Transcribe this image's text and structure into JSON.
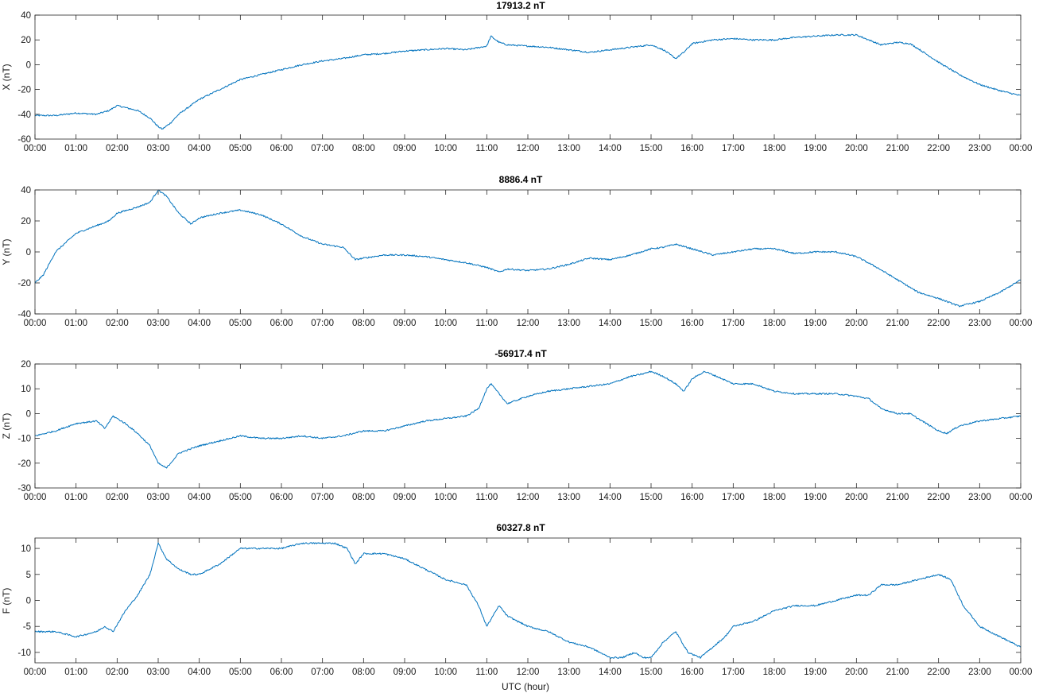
{
  "figure": {
    "xlabel": "UTC (hour)",
    "line_color": "#0072BD"
  },
  "chart_data": [
    {
      "type": "line",
      "title": "17913.2 nT",
      "ylabel": "X (nT)",
      "xlim": [
        0,
        24
      ],
      "ylim": [
        -60,
        40
      ],
      "yticks": [
        -60,
        -40,
        -20,
        0,
        20,
        40
      ],
      "xticks": [
        0,
        1,
        2,
        3,
        4,
        5,
        6,
        7,
        8,
        9,
        10,
        11,
        12,
        13,
        14,
        15,
        16,
        17,
        18,
        19,
        20,
        21,
        22,
        23,
        24
      ],
      "xtick_labels": [
        "00:00",
        "01:00",
        "02:00",
        "03:00",
        "04:00",
        "05:00",
        "06:00",
        "07:00",
        "08:00",
        "09:00",
        "10:00",
        "11:00",
        "12:00",
        "13:00",
        "14:00",
        "15:00",
        "16:00",
        "17:00",
        "18:00",
        "19:00",
        "20:00",
        "21:00",
        "22:00",
        "23:00",
        "00:00"
      ],
      "x": [
        0,
        0.5,
        1,
        1.5,
        1.8,
        2,
        2.5,
        2.8,
        3,
        3.1,
        3.3,
        3.5,
        4,
        4.5,
        5,
        5.5,
        6,
        6.5,
        7,
        7.5,
        8,
        8.5,
        9,
        9.5,
        10,
        10.5,
        11,
        11.1,
        11.3,
        11.5,
        12,
        12.5,
        13,
        13.5,
        14,
        14.5,
        15,
        15.3,
        15.6,
        15.8,
        16,
        16.5,
        17,
        17.5,
        18,
        18.5,
        19,
        19.5,
        20,
        20.3,
        20.6,
        21,
        21.3,
        21.5,
        22,
        22.5,
        23,
        23.5,
        24
      ],
      "y": [
        -41,
        -41,
        -39,
        -40,
        -37,
        -33,
        -37,
        -43,
        -50,
        -52,
        -47,
        -40,
        -28,
        -20,
        -12,
        -8,
        -4,
        0,
        3,
        5,
        8,
        9,
        11,
        12,
        13,
        12,
        15,
        23,
        18,
        16,
        15,
        14,
        12,
        10,
        12,
        14,
        16,
        12,
        5,
        10,
        17,
        20,
        21,
        20,
        20,
        22,
        23,
        24,
        24,
        20,
        16,
        18,
        17,
        13,
        2,
        -8,
        -16,
        -21,
        -25
      ]
    },
    {
      "type": "line",
      "title": "8886.4 nT",
      "ylabel": "Y (nT)",
      "xlim": [
        0,
        24
      ],
      "ylim": [
        -40,
        40
      ],
      "yticks": [
        -40,
        -20,
        0,
        20,
        40
      ],
      "xticks": [
        0,
        1,
        2,
        3,
        4,
        5,
        6,
        7,
        8,
        9,
        10,
        11,
        12,
        13,
        14,
        15,
        16,
        17,
        18,
        19,
        20,
        21,
        22,
        23,
        24
      ],
      "xtick_labels": [
        "00:00",
        "01:00",
        "02:00",
        "03:00",
        "04:00",
        "05:00",
        "06:00",
        "07:00",
        "08:00",
        "09:00",
        "10:00",
        "11:00",
        "12:00",
        "13:00",
        "14:00",
        "15:00",
        "16:00",
        "17:00",
        "18:00",
        "19:00",
        "20:00",
        "21:00",
        "22:00",
        "23:00",
        "00:00"
      ],
      "x": [
        0,
        0.2,
        0.5,
        1,
        1.5,
        1.8,
        2,
        2.5,
        2.8,
        3,
        3.2,
        3.5,
        3.8,
        4,
        4.5,
        5,
        5.5,
        6,
        6.5,
        7,
        7.5,
        7.8,
        8,
        8.5,
        9,
        9.5,
        10,
        10.5,
        11,
        11.3,
        11.5,
        12,
        12.5,
        13,
        13.5,
        14,
        14.5,
        15,
        15.3,
        15.6,
        16,
        16.5,
        17,
        17.5,
        18,
        18.5,
        19,
        19.5,
        20,
        20.5,
        21,
        21.5,
        22,
        22.5,
        23,
        23.5,
        24
      ],
      "y": [
        -20,
        -15,
        0,
        12,
        17,
        20,
        25,
        29,
        32,
        40,
        36,
        25,
        18,
        22,
        25,
        27,
        24,
        18,
        10,
        5,
        3,
        -5,
        -4,
        -2,
        -2,
        -3,
        -5,
        -7,
        -10,
        -13,
        -11,
        -12,
        -11,
        -8,
        -4,
        -5,
        -2,
        2,
        3,
        5,
        2,
        -2,
        0,
        2,
        2,
        -1,
        0,
        0,
        -3,
        -10,
        -18,
        -26,
        -30,
        -35,
        -32,
        -26,
        -18
      ]
    },
    {
      "type": "line",
      "title": "-56917.4 nT",
      "ylabel": "Z (nT)",
      "xlim": [
        0,
        24
      ],
      "ylim": [
        -30,
        20
      ],
      "yticks": [
        -30,
        -20,
        -10,
        0,
        10,
        20
      ],
      "xticks": [
        0,
        1,
        2,
        3,
        4,
        5,
        6,
        7,
        8,
        9,
        10,
        11,
        12,
        13,
        14,
        15,
        16,
        17,
        18,
        19,
        20,
        21,
        22,
        23,
        24
      ],
      "xtick_labels": [
        "00:00",
        "01:00",
        "02:00",
        "03:00",
        "04:00",
        "05:00",
        "06:00",
        "07:00",
        "08:00",
        "09:00",
        "10:00",
        "11:00",
        "12:00",
        "13:00",
        "14:00",
        "15:00",
        "16:00",
        "17:00",
        "18:00",
        "19:00",
        "20:00",
        "21:00",
        "22:00",
        "23:00",
        "00:00"
      ],
      "x": [
        0,
        0.5,
        1,
        1.5,
        1.7,
        1.9,
        2.2,
        2.5,
        2.8,
        3,
        3.2,
        3.5,
        4,
        4.5,
        5,
        5.5,
        6,
        6.5,
        7,
        7.5,
        8,
        8.5,
        9,
        9.5,
        10,
        10.5,
        10.8,
        11,
        11.1,
        11.3,
        11.5,
        12,
        12.5,
        13,
        13.5,
        14,
        14.5,
        14.8,
        15,
        15.3,
        15.6,
        15.8,
        16,
        16.3,
        16.6,
        17,
        17.5,
        18,
        18.5,
        19,
        19.5,
        20,
        20.3,
        20.6,
        21,
        21.3,
        21.6,
        22,
        22.2,
        22.5,
        23,
        23.5,
        24
      ],
      "y": [
        -9,
        -7,
        -4,
        -3,
        -6,
        -1,
        -4,
        -8,
        -13,
        -20,
        -22,
        -16,
        -13,
        -11,
        -9,
        -10,
        -10,
        -9,
        -10,
        -9,
        -7,
        -7,
        -5,
        -3,
        -2,
        -1,
        2,
        10,
        12,
        8,
        4,
        7,
        9,
        10,
        11,
        12,
        15,
        16,
        17,
        15,
        12,
        9,
        14,
        17,
        15,
        12,
        12,
        9,
        8,
        8,
        8,
        7,
        6,
        2,
        0,
        0,
        -3,
        -7,
        -8,
        -5,
        -3,
        -2,
        -1
      ]
    },
    {
      "type": "line",
      "title": "60327.8 nT",
      "ylabel": "F (nT)",
      "xlabel": "UTC (hour)",
      "xlim": [
        0,
        24
      ],
      "ylim": [
        -12,
        12
      ],
      "yticks": [
        -10,
        -5,
        0,
        5,
        10
      ],
      "xticks": [
        0,
        1,
        2,
        3,
        4,
        5,
        6,
        7,
        8,
        9,
        10,
        11,
        12,
        13,
        14,
        15,
        16,
        17,
        18,
        19,
        20,
        21,
        22,
        23,
        24
      ],
      "xtick_labels": [
        "00:00",
        "01:00",
        "02:00",
        "03:00",
        "04:00",
        "05:00",
        "06:00",
        "07:00",
        "08:00",
        "09:00",
        "10:00",
        "11:00",
        "12:00",
        "13:00",
        "14:00",
        "15:00",
        "16:00",
        "17:00",
        "18:00",
        "19:00",
        "20:00",
        "21:00",
        "22:00",
        "23:00",
        "00:00"
      ],
      "x": [
        0,
        0.5,
        1,
        1.5,
        1.7,
        1.9,
        2.2,
        2.5,
        2.8,
        3,
        3.2,
        3.5,
        3.8,
        4,
        4.5,
        5,
        5.5,
        6,
        6.5,
        7,
        7.3,
        7.6,
        7.8,
        8,
        8.5,
        9,
        9.5,
        10,
        10.5,
        10.8,
        11,
        11.3,
        11.5,
        12,
        12.5,
        13,
        13.5,
        14,
        14.3,
        14.6,
        14.8,
        15,
        15.3,
        15.6,
        15.9,
        16.2,
        16.5,
        16.8,
        17,
        17.5,
        18,
        18.5,
        19,
        19.5,
        20,
        20.3,
        20.6,
        21,
        21.5,
        22,
        22.3,
        22.6,
        23,
        23.5,
        24
      ],
      "y": [
        -6,
        -6,
        -7,
        -6,
        -5,
        -6,
        -2,
        1,
        5,
        11,
        8,
        6,
        5,
        5,
        7,
        10,
        10,
        10,
        11,
        11,
        11,
        10,
        7,
        9,
        9,
        8,
        6,
        4,
        3,
        -1,
        -5,
        -1,
        -3,
        -5,
        -6,
        -8,
        -9,
        -11,
        -11,
        -10,
        -11,
        -11,
        -8,
        -6,
        -10,
        -11,
        -9,
        -7,
        -5,
        -4,
        -2,
        -1,
        -1,
        0,
        1,
        1,
        3,
        3,
        4,
        5,
        4,
        -1,
        -5,
        -7,
        -9
      ]
    }
  ]
}
